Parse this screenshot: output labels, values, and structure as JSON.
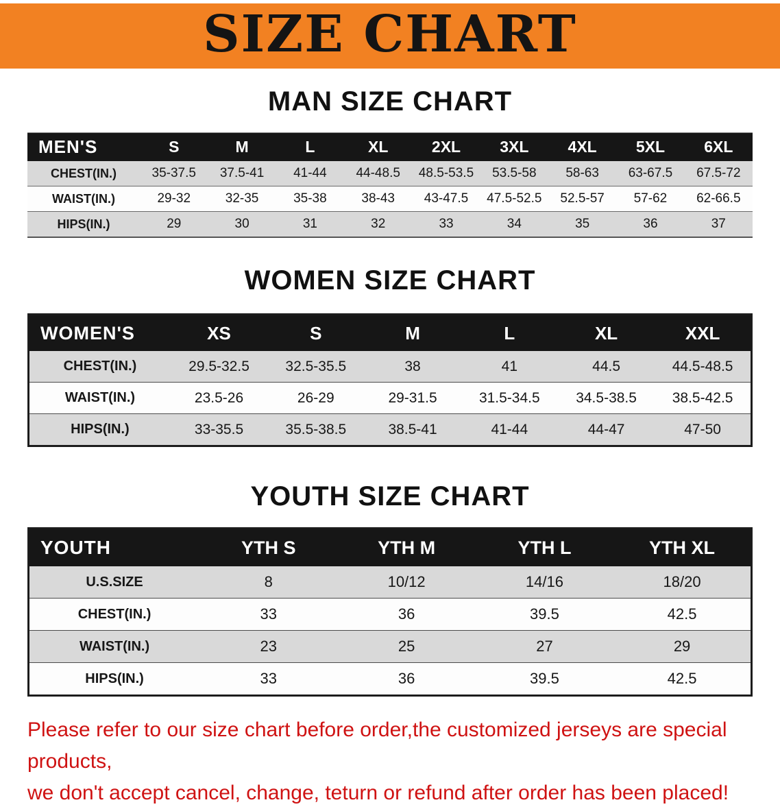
{
  "colors": {
    "banner-bg": "#f28122",
    "table-header-bg": "#161616",
    "row-shade": "#d9d9d9",
    "note-red": "#cf1212"
  },
  "banner": {
    "title": "SIZE CHART"
  },
  "sections": [
    {
      "heading": "MAN SIZE CHART",
      "table": {
        "header_label": "MEN'S",
        "columns": [
          "S",
          "M",
          "L",
          "XL",
          "2XL",
          "3XL",
          "4XL",
          "5XL",
          "6XL"
        ],
        "rows": [
          {
            "label": "CHEST(IN.)",
            "values": [
              "35-37.5",
              "37.5-41",
              "41-44",
              "44-48.5",
              "48.5-53.5",
              "53.5-58",
              "58-63",
              "63-67.5",
              "67.5-72"
            ]
          },
          {
            "label": "WAIST(IN.)",
            "values": [
              "29-32",
              "32-35",
              "35-38",
              "38-43",
              "43-47.5",
              "47.5-52.5",
              "52.5-57",
              "57-62",
              "62-66.5"
            ]
          },
          {
            "label": "HIPS(IN.)",
            "values": [
              "29",
              "30",
              "31",
              "32",
              "33",
              "34",
              "35",
              "36",
              "37"
            ]
          }
        ]
      }
    },
    {
      "heading": "WOMEN SIZE CHART",
      "table": {
        "header_label": "WOMEN'S",
        "columns": [
          "XS",
          "S",
          "M",
          "L",
          "XL",
          "XXL"
        ],
        "rows": [
          {
            "label": "CHEST(IN.)",
            "values": [
              "29.5-32.5",
              "32.5-35.5",
              "38",
              "41",
              "44.5",
              "44.5-48.5"
            ]
          },
          {
            "label": "WAIST(IN.)",
            "values": [
              "23.5-26",
              "26-29",
              "29-31.5",
              "31.5-34.5",
              "34.5-38.5",
              "38.5-42.5"
            ]
          },
          {
            "label": "HIPS(IN.)",
            "values": [
              "33-35.5",
              "35.5-38.5",
              "38.5-41",
              "41-44",
              "44-47",
              "47-50"
            ]
          }
        ]
      }
    },
    {
      "heading": "YOUTH SIZE CHART",
      "table": {
        "header_label": "YOUTH",
        "columns": [
          "YTH S",
          "YTH M",
          "YTH L",
          "YTH XL"
        ],
        "rows": [
          {
            "label": "U.S.SIZE",
            "values": [
              "8",
              "10/12",
              "14/16",
              "18/20"
            ]
          },
          {
            "label": "CHEST(IN.)",
            "values": [
              "33",
              "36",
              "39.5",
              "42.5"
            ]
          },
          {
            "label": "WAIST(IN.)",
            "values": [
              "23",
              "25",
              "27",
              "29"
            ]
          },
          {
            "label": "HIPS(IN.)",
            "values": [
              "33",
              "36",
              "39.5",
              "42.5"
            ]
          }
        ]
      }
    }
  ],
  "footer": {
    "line1": "Please refer to our size chart before order,the customized jerseys are special products,",
    "line2": "we don't accept cancel, change, teturn or refund after order has been placed!"
  }
}
